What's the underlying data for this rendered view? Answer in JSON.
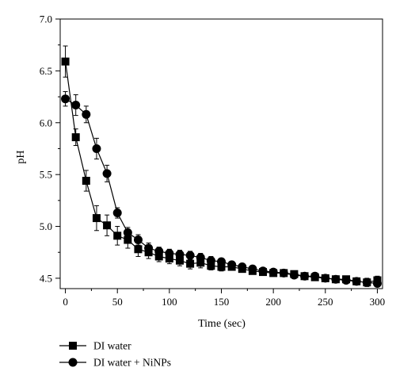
{
  "chart_data": {
    "type": "line",
    "title": "",
    "xlabel": "Time (sec)",
    "ylabel": "pH",
    "xlim": [
      -5,
      305
    ],
    "ylim": [
      4.4,
      7.0
    ],
    "x_ticks": [
      0,
      50,
      100,
      150,
      200,
      250,
      300
    ],
    "y_ticks": [
      4.5,
      5.0,
      5.5,
      6.0,
      6.5,
      7.0
    ],
    "x_tick_labels": [
      "0",
      "50",
      "100",
      "150",
      "200",
      "250",
      "300"
    ],
    "y_tick_labels": [
      "4.5",
      "5.0",
      "5.5",
      "6.0",
      "6.5",
      "7.0"
    ],
    "grid": false,
    "legend_position": "bottom-left, below plot",
    "series": [
      {
        "name": "DI water",
        "marker": "square",
        "color": "#000000",
        "x": [
          0,
          10,
          20,
          30,
          40,
          50,
          60,
          70,
          80,
          90,
          100,
          110,
          120,
          130,
          140,
          150,
          160,
          170,
          180,
          190,
          200,
          210,
          220,
          230,
          240,
          250,
          260,
          270,
          280,
          290,
          300
        ],
        "y": [
          6.59,
          5.86,
          5.44,
          5.08,
          5.01,
          4.91,
          4.87,
          4.78,
          4.75,
          4.71,
          4.69,
          4.67,
          4.64,
          4.65,
          4.62,
          4.61,
          4.61,
          4.59,
          4.57,
          4.56,
          4.55,
          4.55,
          4.54,
          4.52,
          4.51,
          4.5,
          4.49,
          4.49,
          4.47,
          4.46,
          4.48
        ],
        "err": [
          0.15,
          0.08,
          0.1,
          0.12,
          0.1,
          0.09,
          0.08,
          0.07,
          0.06,
          0.05,
          0.05,
          0.05,
          0.05,
          0.05,
          0.04,
          0.04,
          0.03,
          0.03,
          0.03,
          0.03,
          0.03,
          0.03,
          0.03,
          0.03,
          0.03,
          0.03,
          0.03,
          0.03,
          0.03,
          0.04,
          0.04
        ]
      },
      {
        "name": "DI water + NiNPs",
        "marker": "circle",
        "color": "#000000",
        "x": [
          0,
          10,
          20,
          30,
          40,
          50,
          60,
          70,
          80,
          90,
          100,
          110,
          120,
          130,
          140,
          150,
          160,
          170,
          180,
          190,
          200,
          210,
          220,
          230,
          240,
          250,
          260,
          270,
          280,
          290,
          300
        ],
        "y": [
          6.23,
          6.17,
          6.08,
          5.75,
          5.51,
          5.13,
          4.94,
          4.87,
          4.79,
          4.76,
          4.74,
          4.73,
          4.72,
          4.7,
          4.67,
          4.66,
          4.63,
          4.61,
          4.59,
          4.57,
          4.56,
          4.55,
          4.53,
          4.52,
          4.52,
          4.5,
          4.49,
          4.48,
          4.47,
          4.46,
          4.45
        ],
        "err": [
          0.07,
          0.1,
          0.08,
          0.1,
          0.08,
          0.05,
          0.05,
          0.05,
          0.05,
          0.04,
          0.04,
          0.04,
          0.04,
          0.04,
          0.04,
          0.03,
          0.03,
          0.03,
          0.03,
          0.03,
          0.03,
          0.03,
          0.03,
          0.03,
          0.03,
          0.03,
          0.03,
          0.03,
          0.03,
          0.03,
          0.03
        ]
      }
    ]
  }
}
